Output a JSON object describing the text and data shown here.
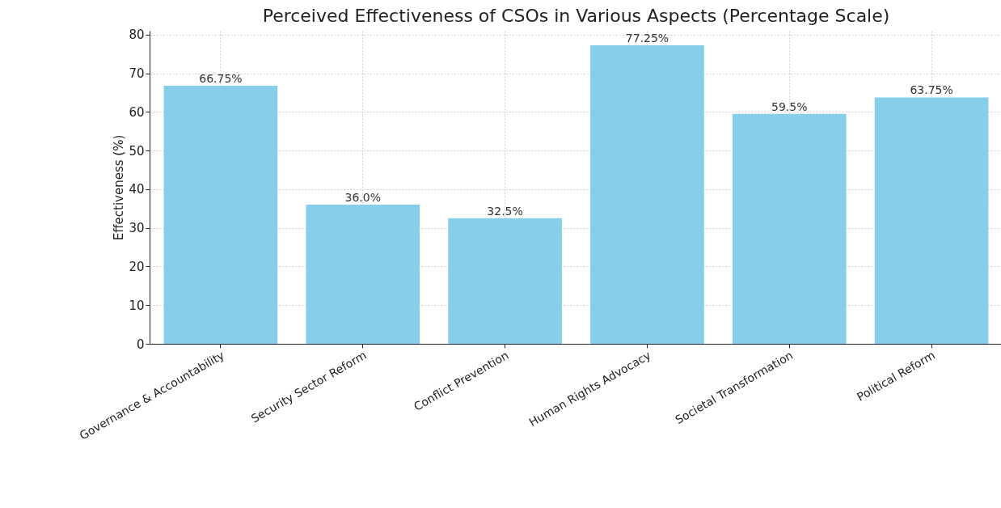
{
  "chart_data": {
    "type": "bar",
    "title": "Perceived Effectiveness of CSOs in Various Aspects (Percentage Scale)",
    "ylabel": "Effectiveness (%)",
    "categories": [
      "Governance & Accountability",
      "Security Sector Reform",
      "Conflict Prevention",
      "Human Rights Advocacy",
      "Societal Transformation",
      "Political Reform"
    ],
    "values": [
      66.75,
      36,
      32.5,
      77.25,
      59.5,
      63.75
    ],
    "value_labels": [
      "66.75%",
      "36.0%",
      "32.5%",
      "77.25%",
      "59.5%",
      "63.75%"
    ],
    "color": "#87ceeb",
    "ylim": [
      0,
      81
    ],
    "yticks": [
      0,
      10,
      20,
      30,
      40,
      50,
      60,
      70,
      80
    ],
    "grid": true
  }
}
